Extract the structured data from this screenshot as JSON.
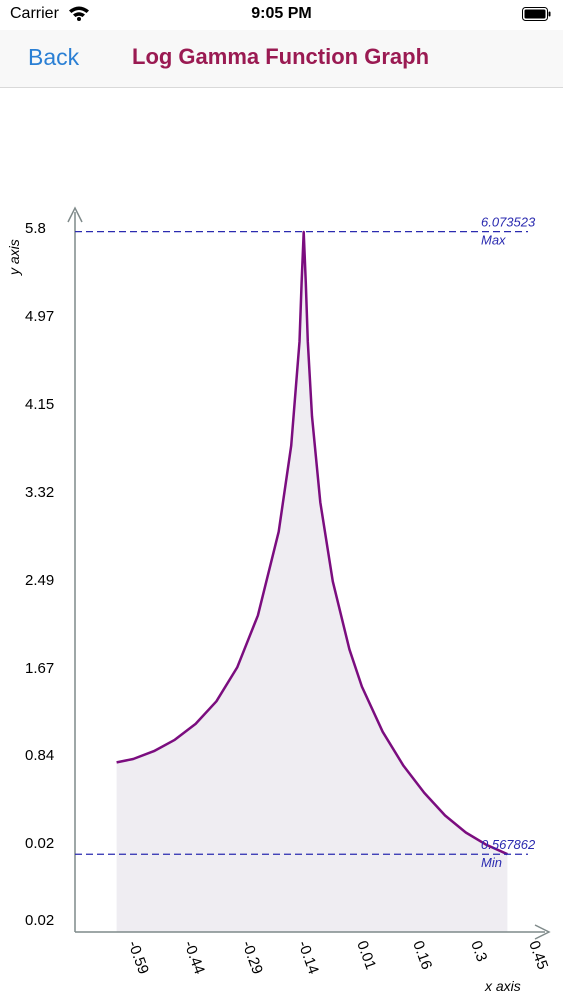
{
  "status_bar": {
    "carrier": "Carrier",
    "time": "9:05 PM"
  },
  "nav": {
    "back_label": "Back",
    "title": "Log Gamma Function Graph"
  },
  "colors": {
    "curve": "#7b0d7f",
    "fill": "#efedf2",
    "dashed": "#2b2bb0",
    "axis": "#7f8a8a",
    "accent": "#2a7fd4",
    "title": "#9a1a52"
  },
  "chart_data": {
    "type": "area",
    "xlabel": "x axis",
    "ylabel": "y axis",
    "y_ticks": [
      "0.02",
      "0.02",
      "0.84",
      "1.67",
      "2.49",
      "3.32",
      "4.15",
      "4.97",
      "5.8"
    ],
    "x_ticks": [
      "-0.59",
      "-0.44",
      "-0.29",
      "-0.14",
      "0.01",
      "0.16",
      "0.3",
      "0.45"
    ],
    "xlim": [
      -0.69,
      0.45
    ],
    "ylim": [
      -0.12,
      6.3
    ],
    "annotations": [
      {
        "value_label": "6.073523",
        "tag": "Max",
        "y": 6.073523
      },
      {
        "value_label": "0.567862",
        "tag": "Min",
        "y": 0.567862
      }
    ],
    "series": [
      {
        "x": [
          -0.59,
          -0.55,
          -0.5,
          -0.45,
          -0.4,
          -0.35,
          -0.3,
          -0.25,
          -0.2,
          -0.17,
          -0.15,
          -0.145,
          -0.14,
          -0.135,
          -0.13,
          -0.12,
          -0.1,
          -0.07,
          -0.03,
          0.0,
          0.05,
          0.1,
          0.15,
          0.2,
          0.25,
          0.3,
          0.35
        ],
        "y": [
          1.38,
          1.41,
          1.48,
          1.58,
          1.72,
          1.92,
          2.22,
          2.68,
          3.42,
          4.18,
          5.1,
          5.62,
          6.07,
          5.62,
          5.1,
          4.44,
          3.68,
          2.98,
          2.38,
          2.05,
          1.65,
          1.35,
          1.11,
          0.91,
          0.76,
          0.65,
          0.568
        ]
      }
    ]
  }
}
